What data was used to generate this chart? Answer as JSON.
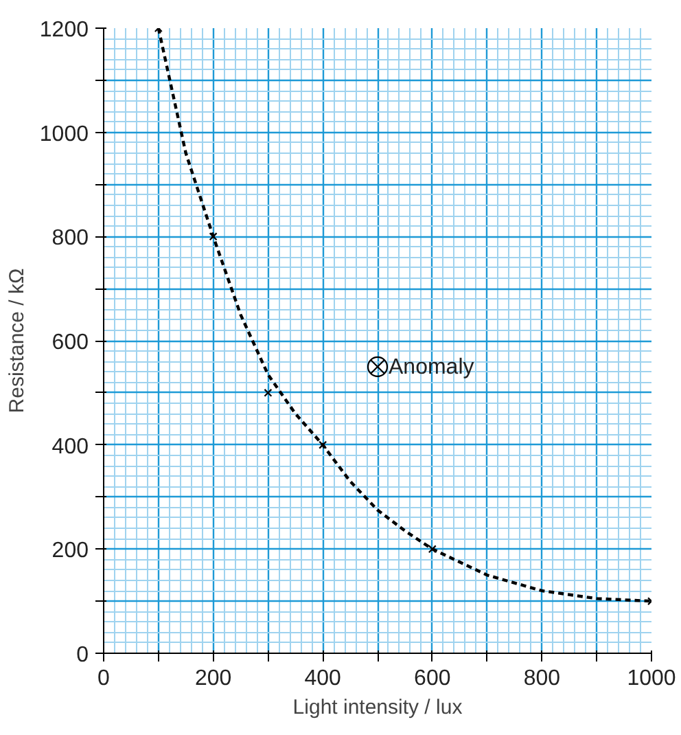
{
  "chart_data": {
    "type": "scatter",
    "xlabel": "Light intensity / lux",
    "ylabel": "Resistance / kΩ",
    "xlim": [
      0,
      1000
    ],
    "ylim": [
      0,
      1200
    ],
    "xticks": [
      0,
      {
        "value": 100,
        "label": null
      },
      200,
      {
        "value": 300,
        "label": null
      },
      400,
      {
        "value": 500,
        "label": null
      },
      600,
      {
        "value": 700,
        "label": null
      },
      800,
      {
        "value": 900,
        "label": null
      },
      1000
    ],
    "yticks": [
      0,
      {
        "value": 100,
        "label": null
      },
      200,
      {
        "value": 300,
        "label": null
      },
      400,
      {
        "value": 500,
        "label": null
      },
      600,
      {
        "value": 700,
        "label": null
      },
      800,
      {
        "value": 900,
        "label": null
      },
      1000,
      {
        "value": 1100,
        "label": null
      },
      1200
    ],
    "grid": true,
    "marker": "cross",
    "series": [
      {
        "color": "#000000",
        "x": [
          100,
          200,
          300,
          400,
          600,
          1000
        ],
        "values": [
          1200,
          800,
          500,
          400,
          200,
          100
        ]
      },
      {
        "name": "Anomaly",
        "color": "#000000",
        "x": [
          500
        ],
        "values": [
          550
        ]
      },
      {
        "type": "line",
        "marker": "none",
        "line_style": "dotted",
        "color": "#000000",
        "x": [
          100,
          150,
          200,
          250,
          300,
          350,
          400,
          450,
          500,
          550,
          600,
          700,
          800,
          900,
          1000
        ],
        "values": [
          1200,
          960,
          800,
          650,
          535,
          460,
          400,
          330,
          275,
          235,
          200,
          150,
          120,
          105,
          100
        ]
      }
    ]
  }
}
